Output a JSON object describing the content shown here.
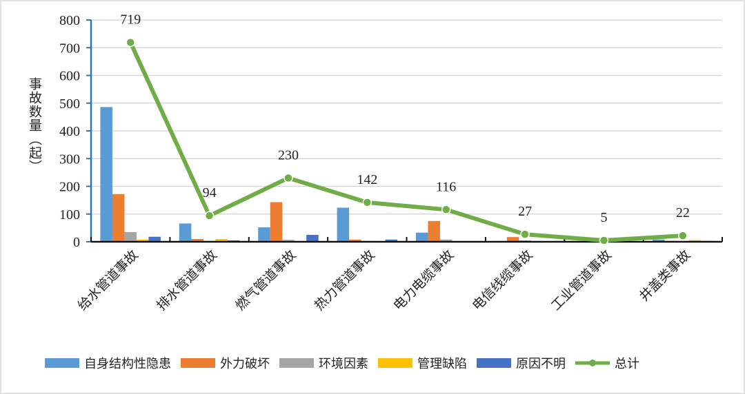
{
  "chart_data": {
    "type": "bar+line",
    "ylabel": "事故数量（起）",
    "ylim": [
      0,
      800
    ],
    "yticks": [
      0,
      100,
      200,
      300,
      400,
      500,
      600,
      700,
      800
    ],
    "grid": true,
    "legend_position": "bottom",
    "categories": [
      "给水管道事故",
      "排水管道事故",
      "燃气管道事故",
      "热力管道事故",
      "电力电缆事故",
      "电信线缆事故",
      "工业管道事故",
      "井盖类事故"
    ],
    "series": [
      {
        "name": "自身结构性隐患",
        "type": "bar",
        "color": "#5B9BD5",
        "values": [
          486,
          66,
          52,
          123,
          33,
          3,
          2,
          8
        ]
      },
      {
        "name": "外力破坏",
        "type": "bar",
        "color": "#ED7D31",
        "values": [
          172,
          10,
          143,
          8,
          75,
          17,
          1,
          3
        ]
      },
      {
        "name": "环境因素",
        "type": "bar",
        "color": "#A5A5A5",
        "values": [
          35,
          3,
          7,
          3,
          8,
          5,
          1,
          2
        ]
      },
      {
        "name": "管理缺陷",
        "type": "bar",
        "color": "#FFC000",
        "values": [
          8,
          10,
          3,
          0,
          0,
          0,
          0,
          6
        ]
      },
      {
        "name": "原因不明",
        "type": "bar",
        "color": "#4472C4",
        "values": [
          18,
          5,
          25,
          8,
          0,
          2,
          1,
          3
        ]
      },
      {
        "name": "总计",
        "type": "line",
        "color": "#70AD47",
        "values": [
          719,
          94,
          230,
          142,
          116,
          27,
          5,
          22
        ]
      }
    ]
  }
}
